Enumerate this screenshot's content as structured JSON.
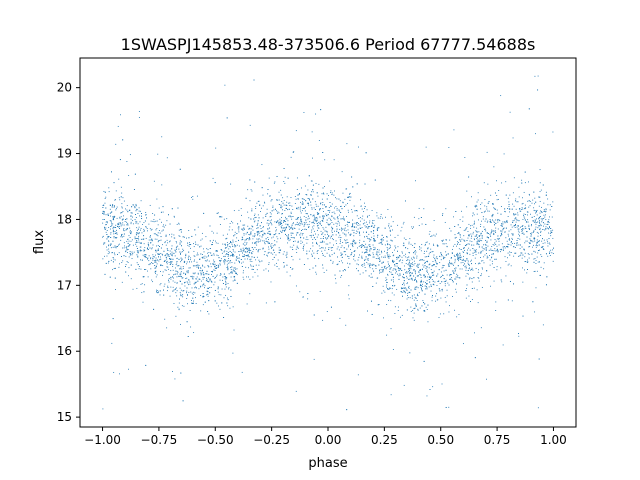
{
  "chart_data": {
    "type": "scatter",
    "title": "1SWASPJ145853.48-373506.6 Period 67777.54688s",
    "xlabel": "phase",
    "ylabel": "flux",
    "xlim": [
      -1.1,
      1.1
    ],
    "ylim": [
      14.85,
      20.45
    ],
    "xticks": [
      -1.0,
      -0.75,
      -0.5,
      -0.25,
      0.0,
      0.25,
      0.5,
      0.75,
      1.0
    ],
    "xtick_labels": [
      "−1.00",
      "−0.75",
      "−0.50",
      "−0.25",
      "0.00",
      "0.25",
      "0.50",
      "0.75",
      "1.00"
    ],
    "yticks": [
      15,
      16,
      17,
      18,
      19,
      20
    ],
    "ytick_labels": [
      "15",
      "16",
      "17",
      "18",
      "19",
      "20"
    ],
    "grid": false,
    "legend": "none",
    "point_color": "#1f77b4",
    "series": [
      {
        "phase": [
          -1.0,
          -0.95,
          -0.9,
          -0.85,
          -0.8,
          -0.75,
          -0.7,
          -0.65,
          -0.6,
          -0.55,
          -0.5,
          -0.45,
          -0.4,
          -0.35,
          -0.3,
          -0.25,
          -0.2,
          -0.15,
          -0.1,
          -0.05,
          0.0,
          0.05,
          0.1,
          0.15,
          0.2,
          0.25,
          0.3,
          0.35,
          0.4,
          0.45,
          0.5,
          0.55,
          0.6,
          0.65,
          0.7,
          0.75,
          0.8,
          0.85,
          0.9,
          0.95,
          1.0
        ],
        "flux_mean": [
          17.85,
          17.85,
          17.8,
          17.72,
          17.62,
          17.5,
          17.38,
          17.28,
          17.22,
          17.2,
          17.25,
          17.35,
          17.5,
          17.65,
          17.78,
          17.86,
          17.9,
          17.92,
          17.92,
          17.9,
          17.88,
          17.84,
          17.78,
          17.68,
          17.56,
          17.44,
          17.32,
          17.22,
          17.18,
          17.18,
          17.22,
          17.32,
          17.46,
          17.6,
          17.72,
          17.8,
          17.85,
          17.87,
          17.88,
          17.87,
          17.86
        ]
      }
    ]
  }
}
